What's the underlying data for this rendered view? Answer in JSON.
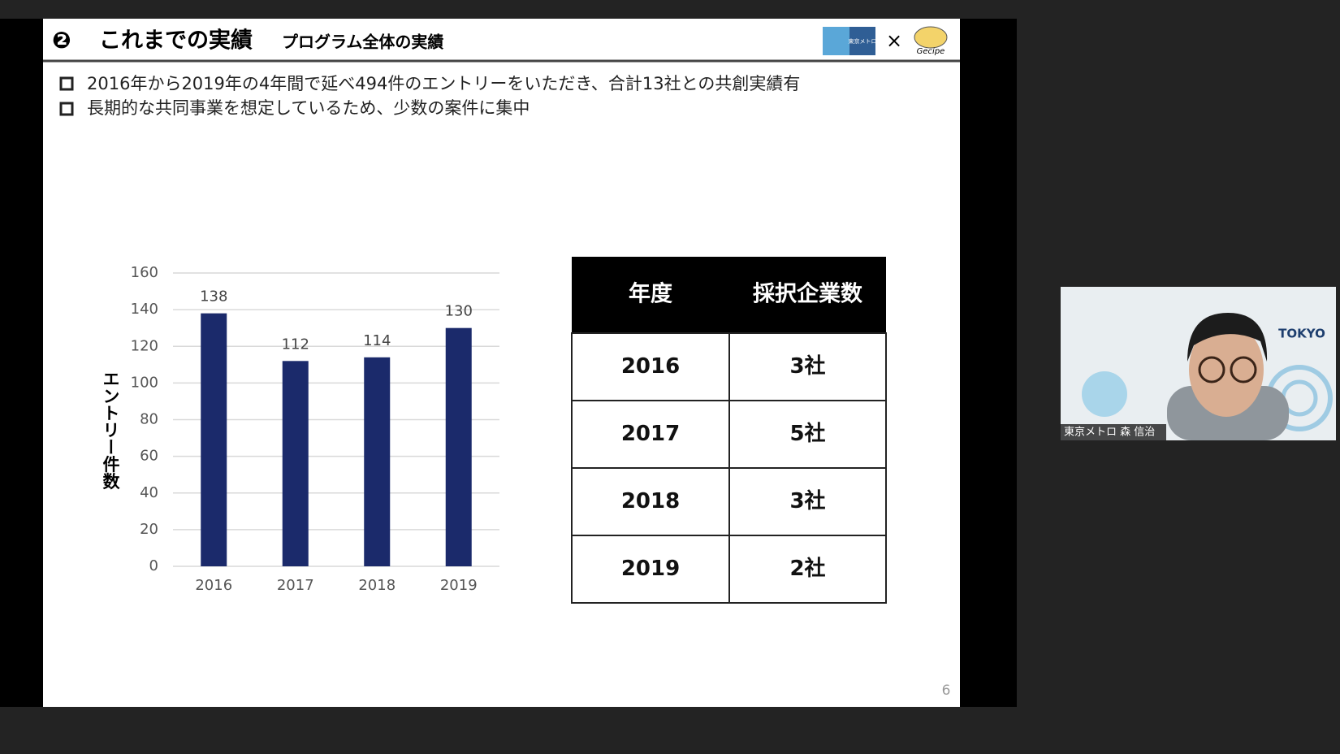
{
  "header": {
    "number": "❷",
    "title": "これまでの実績",
    "subtitle": "プログラム全体の実績",
    "metro_logo": "東京メトロ",
    "separator": "×",
    "partner_logo": "Gecipe"
  },
  "bullets": [
    "2016年から2019年の4年間で延べ494件のエントリーをいただき、合計13社との共創実績有",
    "長期的な共同事業を想定しているため、少数の案件に集中"
  ],
  "chart_data": {
    "type": "bar",
    "y_axis_label": "エントリー件数",
    "categories": [
      "2016",
      "2017",
      "2018",
      "2019"
    ],
    "values": [
      138,
      112,
      114,
      130
    ],
    "color": "#1b2a6b",
    "ylim": [
      0,
      160
    ],
    "yticks": [
      0,
      20,
      40,
      60,
      80,
      100,
      120,
      140,
      160
    ],
    "grid": true
  },
  "table": {
    "header": [
      "年度",
      "採択企業数"
    ],
    "rows": [
      [
        "2016",
        "3社"
      ],
      [
        "2017",
        "5社"
      ],
      [
        "2018",
        "3社"
      ],
      [
        "2019",
        "2社"
      ]
    ]
  },
  "page_number": "6",
  "participant": {
    "name": "東京メトロ 森 信治",
    "badge": "TOKYO"
  }
}
